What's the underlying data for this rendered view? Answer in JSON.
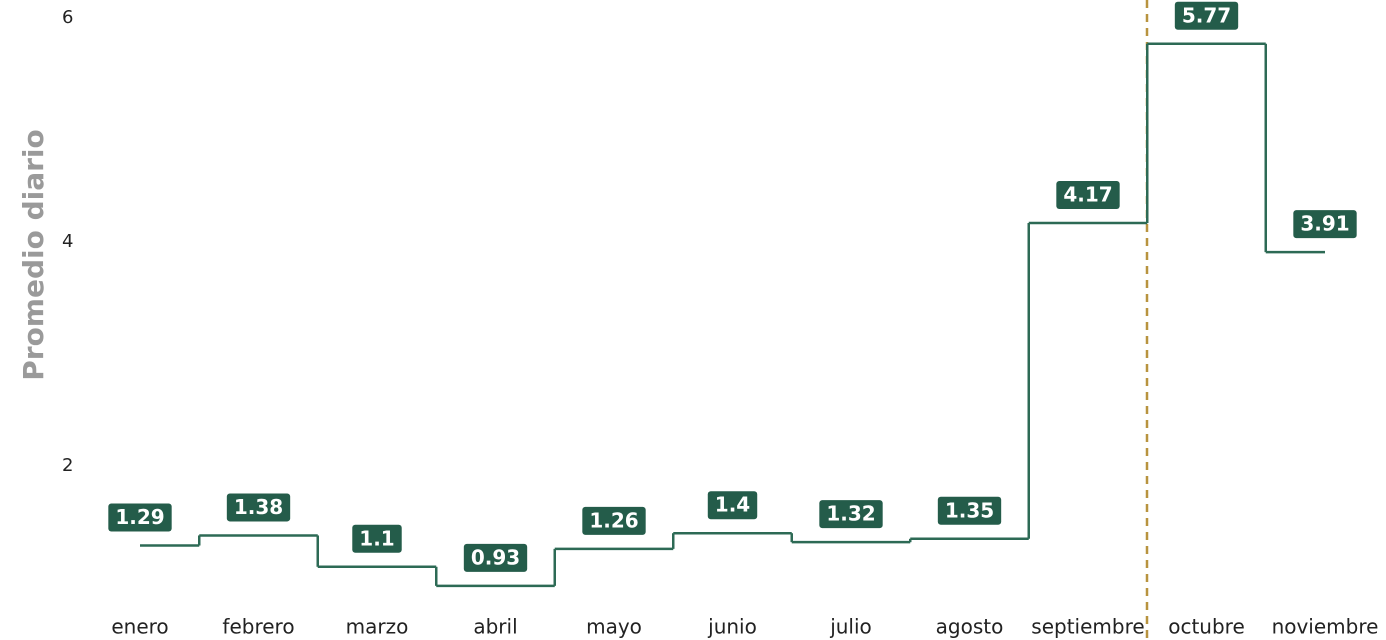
{
  "chart_data": {
    "type": "step",
    "y_label": "Promedio diario",
    "categories": [
      "enero",
      "febrero",
      "marzo",
      "abril",
      "mayo",
      "junio",
      "julio",
      "agosto",
      "septiembre",
      "octubre",
      "noviembre"
    ],
    "values": [
      1.29,
      1.38,
      1.1,
      0.93,
      1.26,
      1.4,
      1.32,
      1.35,
      4.17,
      5.77,
      3.91
    ],
    "color": "#2d6a55",
    "label_color": "#245c4a",
    "ylim": [
      0.5,
      6.1
    ],
    "yticks": [
      2,
      4,
      6
    ],
    "grid": false
  }
}
